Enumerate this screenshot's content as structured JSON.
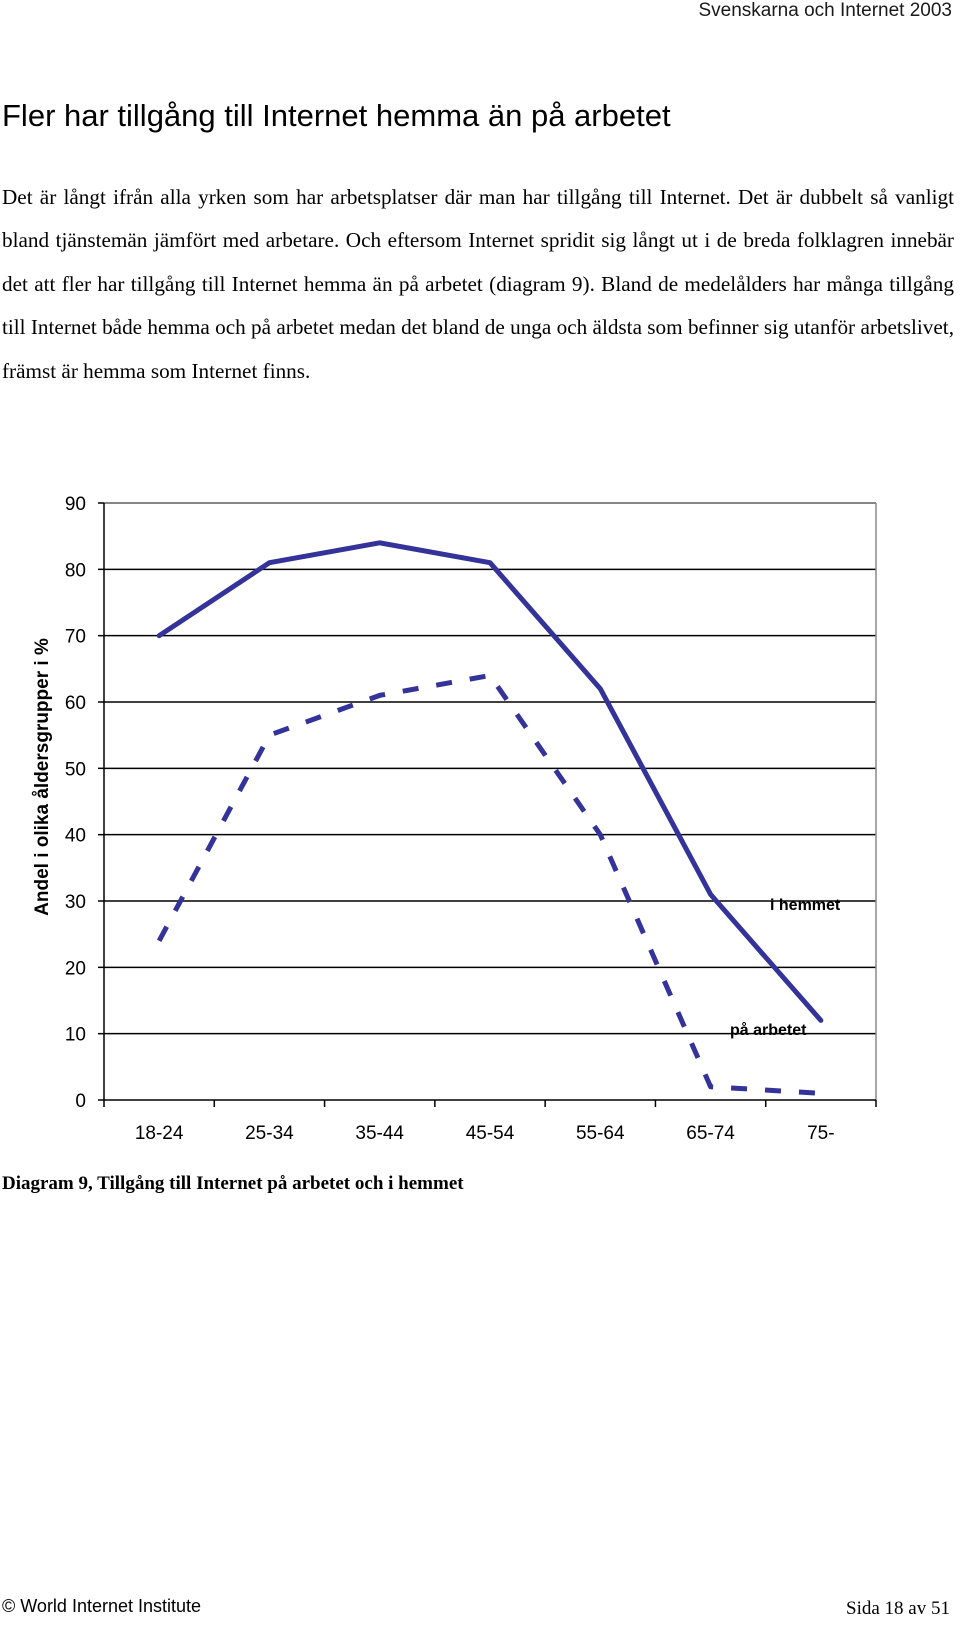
{
  "header": {
    "running_title": "Svenskarna och Internet 2003"
  },
  "section": {
    "title": "Fler har tillgång till Internet hemma än på arbetet",
    "paragraph": "Det är långt ifrån alla yrken som har arbetsplatser där man har tillgång till Internet. Det är dubbelt så vanligt bland tjänstemän jämfört med arbetare. Och eftersom Internet spridit sig långt ut i de breda folklagren innebär det att fler har tillgång till Internet hemma än på arbetet (diagram 9). Bland de medelålders har många tillgång till Internet både hemma och på arbetet medan det bland de unga och äldsta som befinner sig utanför arbetslivet, främst är hemma som Internet finns."
  },
  "chart_data": {
    "type": "line",
    "categories": [
      "18-24",
      "25-34",
      "35-44",
      "45-54",
      "55-64",
      "65-74",
      "75-"
    ],
    "series": [
      {
        "name": "i hemmet",
        "values": [
          70,
          81,
          84,
          81,
          62,
          31,
          12
        ],
        "style": "solid",
        "color": "#333399"
      },
      {
        "name": "på arbetet",
        "values": [
          24,
          55,
          61,
          64,
          40,
          2,
          1
        ],
        "style": "dashed",
        "color": "#333399"
      }
    ],
    "ylabel": "Andel i olika åldersgrupper i %",
    "ylim": [
      0,
      90
    ],
    "yticks": [
      0,
      10,
      20,
      30,
      40,
      50,
      60,
      70,
      80,
      90
    ],
    "grid": true,
    "legend": "inline labels near line ends"
  },
  "caption": "Diagram 9, Tillgång till Internet på arbetet och i hemmet",
  "footer": {
    "left": "© World Internet Institute",
    "right": "Sida 18 av 51"
  },
  "colors": {
    "series": "#333399",
    "grid": "#000000"
  }
}
